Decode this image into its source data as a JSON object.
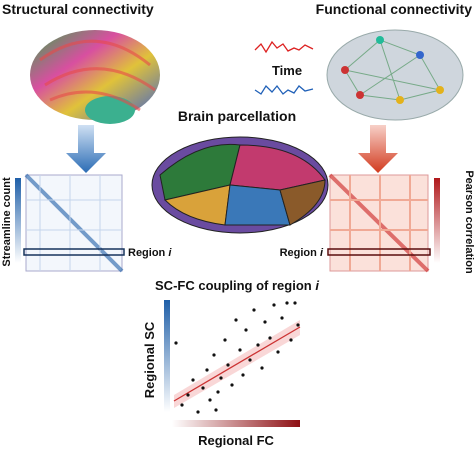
{
  "structural": {
    "title": "Structural connectivity",
    "colorbar_label": "Streamline count",
    "row_label": {
      "text": "Region",
      "var": "i"
    }
  },
  "functional": {
    "title": "Functional connectivity",
    "signal_label": "Time",
    "colorbar_label": "Pearson correlation",
    "row_label": {
      "text": "Region",
      "var": "i"
    }
  },
  "parcellation": {
    "title": "Brain parcellation"
  },
  "coupling": {
    "title": {
      "text": "SC-FC coupling of region",
      "var": "i"
    },
    "y_label": "Regional SC",
    "x_label": "Regional FC"
  }
}
